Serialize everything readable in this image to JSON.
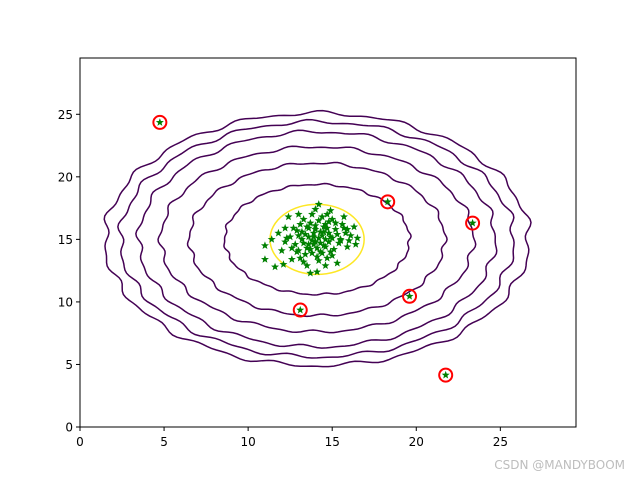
{
  "chart_data": {
    "type": "scatter",
    "title": "",
    "xlabel": "",
    "ylabel": "",
    "xlim": [
      0,
      29.5
    ],
    "ylim": [
      0,
      29.5
    ],
    "x_ticks": [
      0,
      5,
      10,
      15,
      20,
      25
    ],
    "y_ticks": [
      0,
      5,
      10,
      15,
      20,
      25
    ],
    "grid": false,
    "legend": "none",
    "colors": {
      "points": "#008000",
      "contours": "#440154",
      "mean_ellipse": "#fde725",
      "outlier_circles": "#ff0000"
    },
    "cluster_center": [
      14.1,
      15.0
    ],
    "contour_levels": [
      {
        "rx": 5.5,
        "ry": 4.4
      },
      {
        "rx": 7.6,
        "ry": 6.1
      },
      {
        "rx": 9.3,
        "ry": 7.4
      },
      {
        "rx": 10.6,
        "ry": 8.6
      },
      {
        "rx": 11.7,
        "ry": 9.4
      },
      {
        "rx": 12.6,
        "ry": 10.1
      }
    ],
    "mean_ellipse": {
      "cx": 14.1,
      "cy": 15.0,
      "rx": 2.8,
      "ry": 2.8
    },
    "outliers": [
      {
        "x": 4.75,
        "y": 24.35
      },
      {
        "x": 18.3,
        "y": 18.0
      },
      {
        "x": 23.35,
        "y": 16.3
      },
      {
        "x": 19.6,
        "y": 10.45
      },
      {
        "x": 13.1,
        "y": 9.35
      },
      {
        "x": 21.75,
        "y": 4.15
      }
    ],
    "points": [
      [
        14.2,
        15.1
      ],
      [
        13.8,
        14.9
      ],
      [
        14.5,
        15.6
      ],
      [
        13.5,
        14.3
      ],
      [
        14.9,
        15.2
      ],
      [
        13.2,
        15.0
      ],
      [
        14.0,
        16.1
      ],
      [
        14.6,
        14.4
      ],
      [
        13.9,
        15.5
      ],
      [
        15.2,
        15.8
      ],
      [
        12.8,
        14.6
      ],
      [
        14.3,
        14.0
      ],
      [
        15.5,
        15.0
      ],
      [
        13.6,
        15.9
      ],
      [
        14.8,
        16.4
      ],
      [
        13.0,
        14.1
      ],
      [
        14.1,
        13.6
      ],
      [
        15.8,
        15.5
      ],
      [
        12.5,
        15.2
      ],
      [
        14.4,
        16.8
      ],
      [
        13.4,
        13.8
      ],
      [
        15.1,
        14.2
      ],
      [
        14.7,
        15.9
      ],
      [
        13.7,
        16.3
      ],
      [
        12.9,
        15.7
      ],
      [
        15.6,
        16.2
      ],
      [
        14.2,
        13.3
      ],
      [
        13.1,
        13.5
      ],
      [
        16.1,
        15.3
      ],
      [
        12.2,
        14.8
      ],
      [
        14.0,
        17.4
      ],
      [
        15.0,
        13.7
      ],
      [
        13.3,
        16.6
      ],
      [
        16.3,
        16.0
      ],
      [
        11.8,
        15.5
      ],
      [
        14.6,
        12.9
      ],
      [
        12.6,
        13.4
      ],
      [
        15.9,
        14.4
      ],
      [
        13.8,
        17.0
      ],
      [
        12.0,
        14.1
      ],
      [
        11.0,
        14.5
      ],
      [
        11.0,
        13.4
      ],
      [
        11.6,
        12.8
      ],
      [
        11.4,
        15.0
      ],
      [
        12.4,
        16.8
      ],
      [
        13.0,
        17.0
      ],
      [
        14.2,
        17.8
      ],
      [
        16.5,
        15.1
      ],
      [
        14.1,
        12.4
      ],
      [
        13.7,
        12.3
      ],
      [
        15.3,
        13.1
      ],
      [
        14.9,
        17.3
      ],
      [
        15.7,
        16.8
      ],
      [
        16.4,
        14.6
      ],
      [
        12.1,
        13.0
      ],
      [
        13.5,
        12.9
      ],
      [
        14.4,
        15.3
      ],
      [
        13.9,
        14.6
      ],
      [
        14.6,
        15.0
      ],
      [
        14.3,
        14.7
      ],
      [
        13.6,
        15.2
      ],
      [
        14.8,
        14.8
      ],
      [
        14.0,
        15.8
      ],
      [
        13.3,
        14.7
      ],
      [
        15.3,
        15.4
      ],
      [
        14.5,
        16.0
      ],
      [
        13.8,
        13.9
      ],
      [
        14.9,
        14.0
      ],
      [
        13.4,
        15.4
      ],
      [
        15.0,
        16.6
      ],
      [
        12.7,
        15.9
      ],
      [
        14.7,
        13.5
      ],
      [
        15.4,
        14.7
      ],
      [
        14.2,
        16.5
      ],
      [
        12.3,
        15.1
      ],
      [
        13.1,
        16.2
      ],
      [
        15.7,
        15.9
      ],
      [
        14.1,
        14.3
      ],
      [
        13.5,
        16.0
      ],
      [
        14.8,
        15.5
      ],
      [
        12.9,
        14.0
      ],
      [
        15.5,
        14.9
      ],
      [
        13.2,
        15.6
      ],
      [
        14.4,
        13.9
      ],
      [
        13.7,
        14.2
      ],
      [
        15.2,
        16.3
      ],
      [
        14.0,
        14.8
      ],
      [
        14.6,
        16.2
      ],
      [
        13.9,
        15.2
      ],
      [
        14.3,
        15.6
      ],
      [
        13.6,
        14.6
      ],
      [
        15.0,
        15.1
      ],
      [
        14.5,
        14.5
      ],
      [
        13.0,
        15.3
      ],
      [
        12.6,
        14.3
      ],
      [
        15.9,
        15.8
      ],
      [
        16.0,
        14.9
      ],
      [
        13.3,
        13.2
      ],
      [
        14.7,
        17.0
      ],
      [
        12.2,
        15.9
      ]
    ]
  },
  "watermark": "CSDN @MANDYBOOM"
}
